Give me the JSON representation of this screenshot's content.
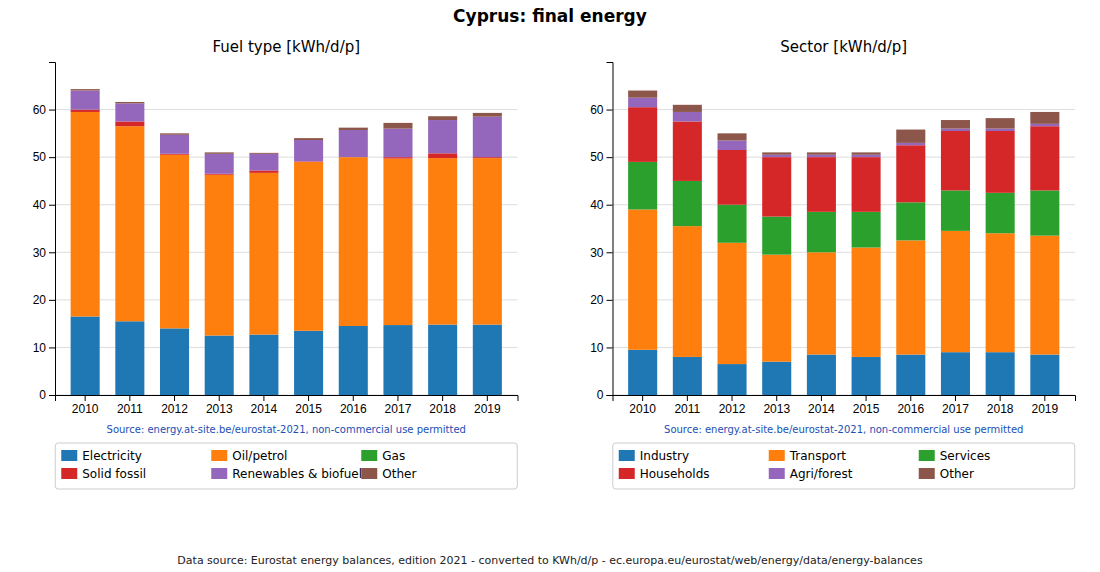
{
  "title": "Cyprus: final energy",
  "annotations": [
    "Data source: Eurostat energy balances, edition 2021 - converted to KWh/d/p - ec.europa.eu/eurostat/web/energy/data/energy-balances"
  ],
  "chart_data": [
    {
      "type": "bar",
      "title": "Fuel type [kWh/d/p]",
      "stacked": true,
      "grid": true,
      "legend": "bottom",
      "categories": [
        "2010",
        "2011",
        "2012",
        "2013",
        "2014",
        "2015",
        "2016",
        "2017",
        "2018",
        "2019"
      ],
      "series": [
        {
          "name": "Electricity",
          "values": [
            16.5,
            15.5,
            14.0,
            12.5,
            12.7,
            13.5,
            14.5,
            14.7,
            14.8,
            14.8
          ]
        },
        {
          "name": "Oil/petrol",
          "values": [
            43.0,
            41.0,
            36.5,
            33.8,
            34.0,
            35.5,
            35.5,
            35.0,
            35.0,
            35.0
          ]
        },
        {
          "name": "Gas",
          "values": [
            0.0,
            0.0,
            0.0,
            0.0,
            0.0,
            0.0,
            0.0,
            0.0,
            0.0,
            0.0
          ]
        },
        {
          "name": "Solid fossil",
          "values": [
            0.5,
            1.0,
            0.2,
            0.2,
            0.5,
            0.1,
            0.0,
            0.3,
            1.0,
            0.2
          ]
        },
        {
          "name": "Renewables & biofuel",
          "values": [
            4.0,
            3.8,
            4.0,
            4.2,
            3.5,
            4.5,
            5.7,
            6.0,
            7.0,
            8.5
          ]
        },
        {
          "name": "Other",
          "values": [
            0.3,
            0.3,
            0.3,
            0.3,
            0.2,
            0.4,
            0.5,
            1.2,
            0.8,
            0.8
          ]
        }
      ],
      "ylim": [
        0,
        70
      ],
      "yticks": [
        0,
        10,
        20,
        30,
        40,
        50,
        60
      ],
      "annotations": [
        "Source: energy.at-site.be/eurostat-2021, non-commercial use permitted"
      ]
    },
    {
      "type": "bar",
      "title": "Sector [kWh/d/p]",
      "stacked": true,
      "grid": true,
      "legend": "bottom",
      "categories": [
        "2010",
        "2011",
        "2012",
        "2013",
        "2014",
        "2015",
        "2016",
        "2017",
        "2018",
        "2019"
      ],
      "series": [
        {
          "name": "Industry",
          "values": [
            9.5,
            8.0,
            6.5,
            7.0,
            8.5,
            8.0,
            8.5,
            9.0,
            9.0,
            8.5
          ]
        },
        {
          "name": "Transport",
          "values": [
            29.5,
            27.5,
            25.5,
            22.5,
            21.5,
            23.0,
            24.0,
            25.5,
            25.0,
            25.0
          ]
        },
        {
          "name": "Services",
          "values": [
            10.0,
            9.5,
            8.0,
            8.0,
            8.5,
            7.5,
            8.0,
            8.5,
            8.5,
            9.5
          ]
        },
        {
          "name": "Households",
          "values": [
            11.5,
            12.5,
            11.5,
            12.5,
            11.5,
            11.5,
            12.0,
            12.5,
            13.0,
            13.5
          ]
        },
        {
          "name": "Agri/forest",
          "values": [
            2.0,
            2.0,
            2.0,
            0.5,
            0.5,
            0.5,
            0.5,
            0.5,
            0.5,
            0.5
          ]
        },
        {
          "name": "Other",
          "values": [
            1.5,
            1.5,
            1.5,
            0.5,
            0.5,
            0.5,
            2.8,
            1.8,
            2.2,
            2.5
          ]
        }
      ],
      "ylim": [
        0,
        70
      ],
      "yticks": [
        0,
        10,
        20,
        30,
        40,
        50,
        60
      ],
      "annotations": [
        "Source: energy.at-site.be/eurostat-2021, non-commercial use permitted"
      ]
    }
  ]
}
